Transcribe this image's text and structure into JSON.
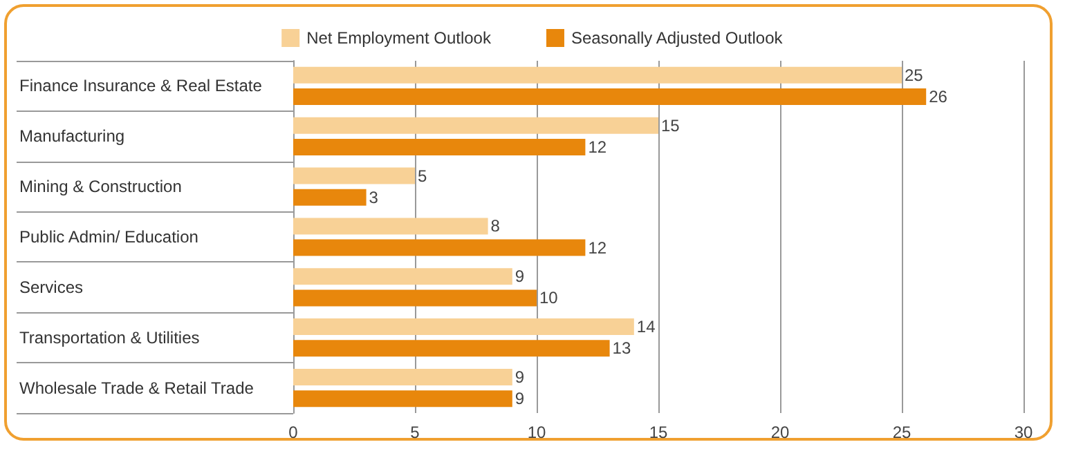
{
  "chart_data": {
    "type": "bar",
    "orientation": "horizontal",
    "categories": [
      "Finance Insurance & Real Estate",
      "Manufacturing",
      "Mining & Construction",
      "Public Admin/ Education",
      "Services",
      "Transportation & Utilities",
      "Wholesale Trade & Retail Trade"
    ],
    "series": [
      {
        "name": "Net Employment Outlook",
        "color": "#f8d196",
        "values": [
          25,
          15,
          5,
          8,
          9,
          14,
          9
        ]
      },
      {
        "name": "Seasonally Adjusted Outlook",
        "color": "#e8870c",
        "values": [
          26,
          12,
          3,
          12,
          10,
          13,
          9
        ]
      }
    ],
    "xlim": [
      0,
      30
    ],
    "xticks": [
      0,
      5,
      10,
      15,
      20,
      25,
      30
    ],
    "grid": "x",
    "legend": "top",
    "data_labels": true
  }
}
